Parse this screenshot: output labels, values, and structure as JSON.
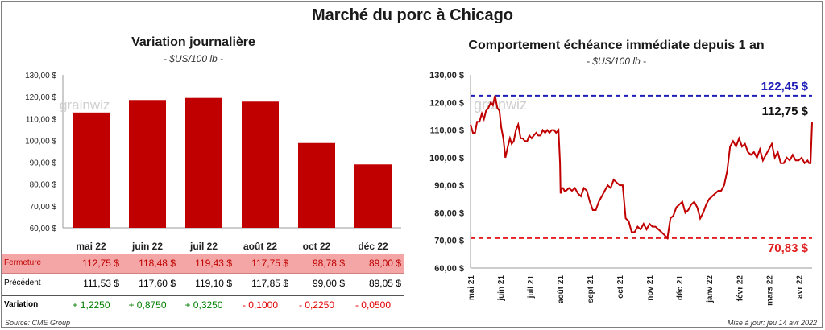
{
  "title": "Marché du porc à Chicago",
  "colors": {
    "bar": "#c00000",
    "line": "#c00000",
    "high": "#1f1fb8",
    "low": "#e02020",
    "pos": "#008000",
    "neg": "#e00000",
    "highlight": "#f4a6a6"
  },
  "left": {
    "subtitle": "Variation journalière",
    "unit": "- $US/100 lb -",
    "table": {
      "rows": [
        {
          "label": "Fermeture",
          "values": [
            "112,75 $",
            "118,48 $",
            "119,43 $",
            "117,75 $",
            "98,78 $",
            "89,00 $"
          ]
        },
        {
          "label": "Précédent",
          "values": [
            "111,53 $",
            "117,60 $",
            "119,10 $",
            "117,85 $",
            "99,00 $",
            "89,05 $"
          ]
        },
        {
          "label": "Variation",
          "values": [
            "+ 1,2250",
            "+ 0,8750",
            "+ 0,3250",
            "- 0,1000",
            "- 0,2250",
            "- 0,0500"
          ]
        }
      ]
    }
  },
  "right": {
    "subtitle": "Comportement  échéance immédiate depuis 1 an",
    "unit": "- $US/100 lb -",
    "high_label": "122,45 $",
    "low_label": "70,83 $",
    "last_label": "112,75 $"
  },
  "chart_data": [
    {
      "type": "bar",
      "title": "Variation journalière",
      "ylabel": "$US/100 lb",
      "categories": [
        "mai 22",
        "juin 22",
        "juil 22",
        "août 22",
        "oct 22",
        "déc 22"
      ],
      "values": [
        112.75,
        118.48,
        119.43,
        117.75,
        98.78,
        89.0
      ],
      "ylim": [
        60,
        130
      ],
      "yticks": [
        "60,00 $",
        "70,00 $",
        "80,00 $",
        "90,00 $",
        "100,00 $",
        "110,00 $",
        "120,00 $",
        "130,00 $"
      ]
    },
    {
      "type": "line",
      "title": "Comportement  échéance immédiate depuis 1 an",
      "ylabel": "$US/100 lb",
      "ylim": [
        60,
        130
      ],
      "yticks": [
        "60,00 $",
        "70,00 $",
        "80,00 $",
        "90,00 $",
        "100,00 $",
        "110,00 $",
        "120,00 $",
        "130,00 $"
      ],
      "xticks": [
        "mai 21",
        "juin 21",
        "juil 21",
        "août 21",
        "sept 21",
        "oct 21",
        "nov 21",
        "déc 21",
        "janv 22",
        "févr 22",
        "mars 22",
        "avr 22"
      ],
      "x_range": [
        0,
        11.45
      ],
      "max_value": 122.45,
      "min_value": 70.83,
      "last_value": 112.75,
      "x": [
        0,
        0.08,
        0.15,
        0.22,
        0.3,
        0.38,
        0.45,
        0.52,
        0.6,
        0.68,
        0.75,
        0.82,
        0.9,
        0.97,
        1.03,
        1.1,
        1.17,
        1.25,
        1.32,
        1.38,
        1.45,
        1.52,
        1.6,
        1.68,
        1.75,
        1.82,
        1.9,
        1.97,
        2.05,
        2.12,
        2.2,
        2.27,
        2.35,
        2.42,
        2.5,
        2.57,
        2.65,
        2.72,
        2.8,
        2.87,
        2.95,
        3.0,
        3.02,
        3.06,
        3.1,
        3.15,
        3.2,
        3.3,
        3.4,
        3.5,
        3.6,
        3.7,
        3.8,
        3.9,
        4.0,
        4.1,
        4.2,
        4.3,
        4.4,
        4.5,
        4.6,
        4.7,
        4.8,
        4.9,
        5.0,
        5.1,
        5.2,
        5.3,
        5.4,
        5.5,
        5.6,
        5.7,
        5.8,
        5.9,
        6.0,
        6.1,
        6.2,
        6.3,
        6.4,
        6.5,
        6.6,
        6.7,
        6.8,
        6.9,
        7.0,
        7.1,
        7.2,
        7.3,
        7.4,
        7.5,
        7.6,
        7.7,
        7.8,
        7.9,
        8.0,
        8.1,
        8.2,
        8.3,
        8.4,
        8.5,
        8.6,
        8.7,
        8.8,
        8.9,
        9.0,
        9.1,
        9.2,
        9.3,
        9.4,
        9.5,
        9.6,
        9.7,
        9.8,
        9.9,
        10.0,
        10.1,
        10.2,
        10.3,
        10.4,
        10.5,
        10.6,
        10.7,
        10.8,
        10.9,
        11.0,
        11.1,
        11.2,
        11.3,
        11.35,
        11.4,
        11.45
      ],
      "y": [
        112,
        109,
        109,
        113,
        113,
        116,
        114,
        117,
        118,
        120,
        119,
        122.45,
        118,
        117,
        111,
        107,
        100,
        104,
        107,
        105,
        106,
        110,
        112,
        107,
        107,
        106,
        106,
        108,
        107,
        108,
        109,
        108,
        108,
        110,
        109,
        110,
        109,
        110,
        110,
        109,
        110,
        98,
        87,
        89,
        89,
        88,
        88,
        89,
        88,
        89,
        87,
        86,
        89,
        88,
        84,
        81,
        81,
        84,
        86,
        88,
        90,
        89,
        92,
        91,
        90,
        90,
        78,
        77,
        73,
        73,
        75,
        74,
        76,
        74,
        76,
        75,
        75,
        74,
        73,
        72,
        70.83,
        78,
        79,
        82,
        83,
        84,
        80,
        81,
        83,
        84,
        82,
        78,
        80,
        83,
        85,
        86,
        87,
        88,
        88,
        90,
        95,
        104,
        106,
        104,
        107,
        104,
        105,
        102,
        101,
        102,
        100,
        103,
        99,
        101,
        103,
        105,
        100,
        102,
        98,
        98,
        100,
        99,
        101,
        99,
        99,
        100,
        98,
        99,
        98,
        98,
        112.75
      ]
    }
  ],
  "footer": {
    "source": "Source: CME Group",
    "update": "Mise à jour: jeu 14 avr 2022"
  }
}
